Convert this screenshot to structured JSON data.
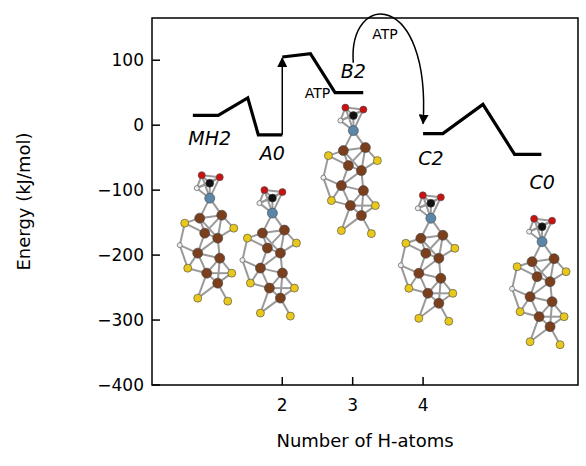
{
  "chart_data": {
    "type": "line",
    "xlabel": "Number of H-atoms",
    "ylabel": "Energy (kJ/mol)",
    "x": [
      0.73,
      1.09,
      1.51,
      1.66,
      2.0,
      2.0,
      2.0,
      2.4,
      2.75,
      3.15,
      3.5,
      4.0,
      4.28,
      4.85,
      5.3,
      5.68
    ],
    "values": [
      15,
      15,
      42,
      -15,
      -15,
      null,
      105,
      110,
      50,
      50,
      null,
      -13,
      -13,
      32,
      -45,
      -45
    ],
    "color": "#000000",
    "xlim": [
      0.15,
      6.2
    ],
    "ylim": [
      -400,
      165
    ],
    "xticks": [
      2,
      3,
      4
    ],
    "yticks": [
      -400,
      -300,
      -200,
      -100,
      0,
      100
    ],
    "annotations": [
      {
        "text": "MH2",
        "x": 0.97,
        "y": -20
      },
      {
        "text": "A0",
        "x": 1.86,
        "y": -43
      },
      {
        "text": "B2",
        "x": 3.01,
        "y": 84
      },
      {
        "text": "C2",
        "x": 4.11,
        "y": -51
      },
      {
        "text": "C0",
        "x": 5.69,
        "y": -87
      },
      {
        "text": "ATP",
        "x": 2.5,
        "y": 50
      },
      {
        "text": "ATP",
        "x": 3.46,
        "y": 140
      }
    ]
  }
}
